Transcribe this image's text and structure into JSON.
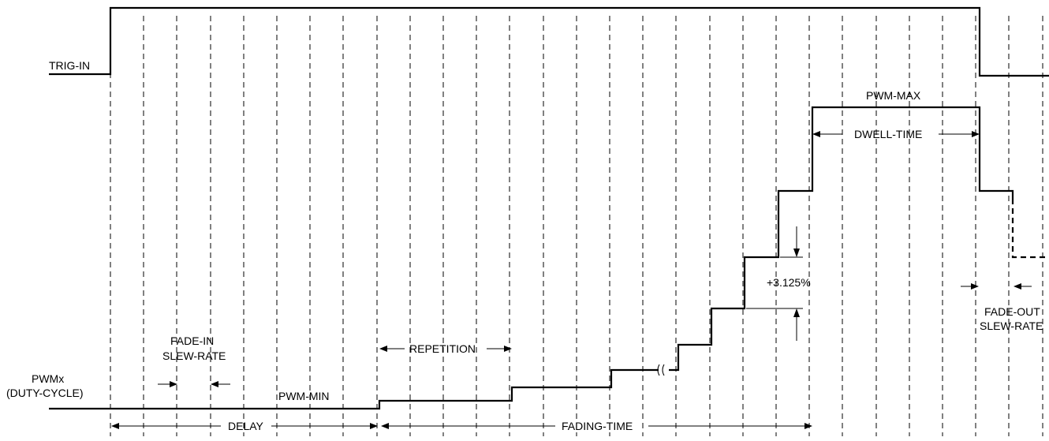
{
  "labels": {
    "trig_in": "TRIG-IN",
    "pwmx": "PWMx",
    "duty_cycle": "(DUTY-CYCLE)",
    "pwm_min": "PWM-MIN",
    "pwm_max": "PWM-MAX",
    "fade_in": "FADE-IN",
    "fade_in_slew": "SLEW-RATE",
    "repetition": "REPETITION",
    "dwell_time": "DWELL-TIME",
    "step_increment": "+3.125%",
    "fade_out": "FADE-OUT",
    "fade_out_slew": "SLEW-RATE",
    "delay": "DELAY",
    "fading_time": "FADING-TIME"
  },
  "colors": {
    "stroke": "#000000",
    "background": "#ffffff"
  }
}
